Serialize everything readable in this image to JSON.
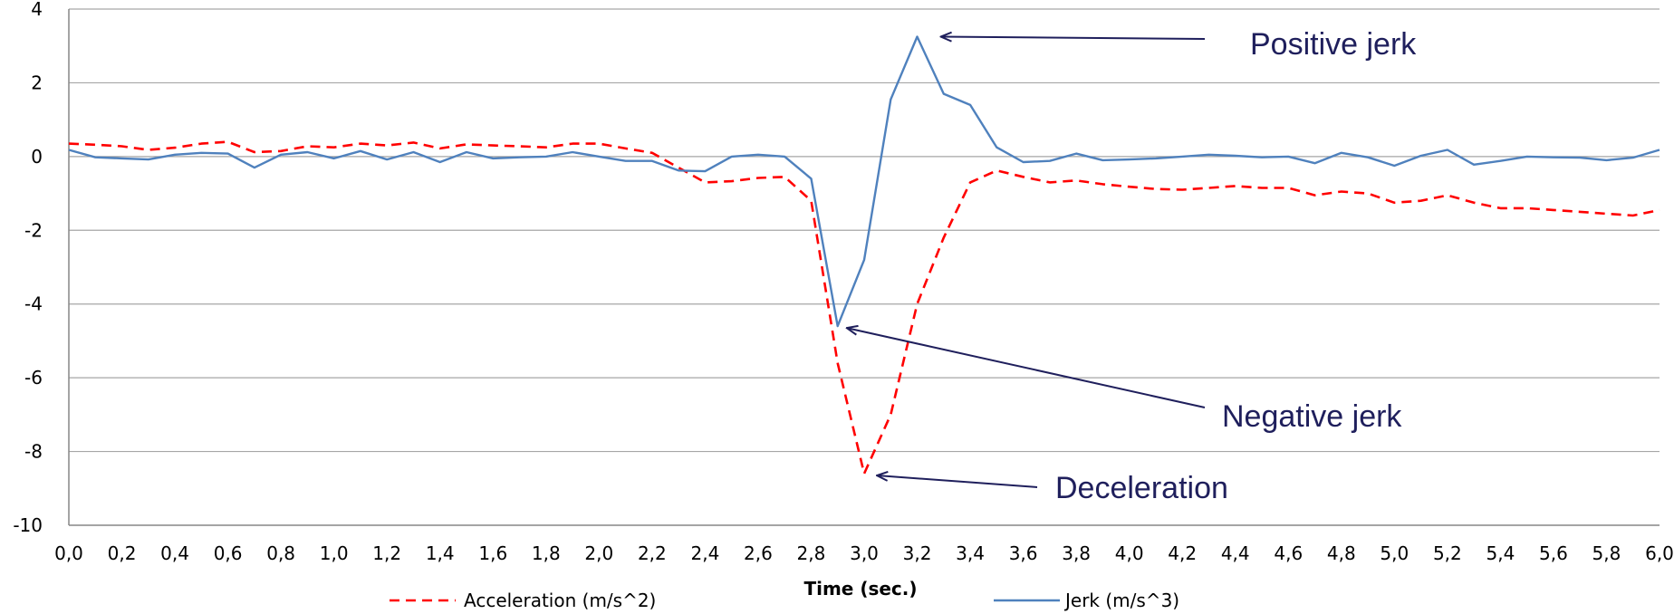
{
  "chart_data": {
    "type": "line",
    "title": "",
    "xlabel": "Time (sec.)",
    "ylabel": "",
    "xlim": [
      0,
      6
    ],
    "ylim": [
      -10,
      4
    ],
    "grid": true,
    "legend_position": "bottom",
    "x_tick_labels": [
      "0,0",
      "0,2",
      "0,4",
      "0,6",
      "0,8",
      "1,0",
      "1,2",
      "1,4",
      "1,6",
      "1,8",
      "2,0",
      "2,2",
      "2,4",
      "2,6",
      "2,8",
      "3,0",
      "3,2",
      "3,4",
      "3,6",
      "3,8",
      "4,0",
      "4,2",
      "4,4",
      "4,6",
      "4,8",
      "5,0",
      "5,2",
      "5,4",
      "5,6",
      "5,8",
      "6,0"
    ],
    "y_tick_labels": [
      "4",
      "2",
      "0",
      "-2",
      "-4",
      "-6",
      "-8",
      "-10"
    ],
    "y_ticks": [
      4,
      2,
      0,
      -2,
      -4,
      -6,
      -8,
      -10
    ],
    "x": [
      0.0,
      0.1,
      0.2,
      0.3,
      0.4,
      0.5,
      0.6,
      0.7,
      0.8,
      0.9,
      1.0,
      1.1,
      1.2,
      1.3,
      1.4,
      1.5,
      1.6,
      1.7,
      1.8,
      1.9,
      2.0,
      2.1,
      2.2,
      2.3,
      2.4,
      2.5,
      2.6,
      2.7,
      2.8,
      2.9,
      3.0,
      3.1,
      3.2,
      3.3,
      3.4,
      3.5,
      3.6,
      3.7,
      3.8,
      3.9,
      4.0,
      4.1,
      4.2,
      4.3,
      4.4,
      4.5,
      4.6,
      4.7,
      4.8,
      4.9,
      5.0,
      5.1,
      5.2,
      5.3,
      5.4,
      5.5,
      5.6,
      5.7,
      5.8,
      5.9,
      6.0
    ],
    "series": [
      {
        "name": "Acceleration (m/s^2)",
        "color": "#ff0000",
        "dash": "dashed",
        "values": [
          0.35,
          0.32,
          0.28,
          0.18,
          0.24,
          0.35,
          0.4,
          0.12,
          0.15,
          0.28,
          0.25,
          0.35,
          0.3,
          0.38,
          0.22,
          0.33,
          0.3,
          0.28,
          0.25,
          0.35,
          0.35,
          0.22,
          0.1,
          -0.3,
          -0.7,
          -0.67,
          -0.58,
          -0.55,
          -1.2,
          -5.6,
          -8.6,
          -7.0,
          -4.0,
          -2.2,
          -0.7,
          -0.38,
          -0.55,
          -0.7,
          -0.65,
          -0.75,
          -0.82,
          -0.88,
          -0.9,
          -0.85,
          -0.8,
          -0.85,
          -0.85,
          -1.05,
          -0.95,
          -1.0,
          -1.25,
          -1.2,
          -1.05,
          -1.25,
          -1.4,
          -1.4,
          -1.45,
          -1.5,
          -1.55,
          -1.6,
          -1.45
        ]
      },
      {
        "name": "Jerk (m/s^3)",
        "color": "#4f81bd",
        "dash": "solid",
        "values": [
          0.18,
          -0.02,
          -0.05,
          -0.08,
          0.05,
          0.1,
          0.08,
          -0.3,
          0.05,
          0.12,
          -0.05,
          0.15,
          -0.08,
          0.12,
          -0.15,
          0.12,
          -0.05,
          -0.02,
          0.0,
          0.12,
          0.0,
          -0.12,
          -0.12,
          -0.38,
          -0.4,
          0.0,
          0.05,
          0.0,
          -0.6,
          -4.6,
          -2.8,
          1.55,
          3.25,
          1.7,
          1.4,
          0.25,
          -0.15,
          -0.12,
          0.08,
          -0.1,
          -0.08,
          -0.05,
          0.0,
          0.05,
          0.02,
          -0.02,
          0.0,
          -0.18,
          0.1,
          -0.02,
          -0.25,
          0.02,
          0.18,
          -0.22,
          -0.12,
          0.0,
          -0.02,
          -0.03,
          -0.1,
          -0.03,
          0.18
        ]
      }
    ],
    "annotations": [
      {
        "text": "Positive jerk",
        "target_x": 3.2,
        "target_y": 3.25
      },
      {
        "text": "Negative jerk",
        "target_x": 2.9,
        "target_y": -4.6
      },
      {
        "text": "Deceleration",
        "target_x": 3.0,
        "target_y": -8.6
      }
    ]
  }
}
